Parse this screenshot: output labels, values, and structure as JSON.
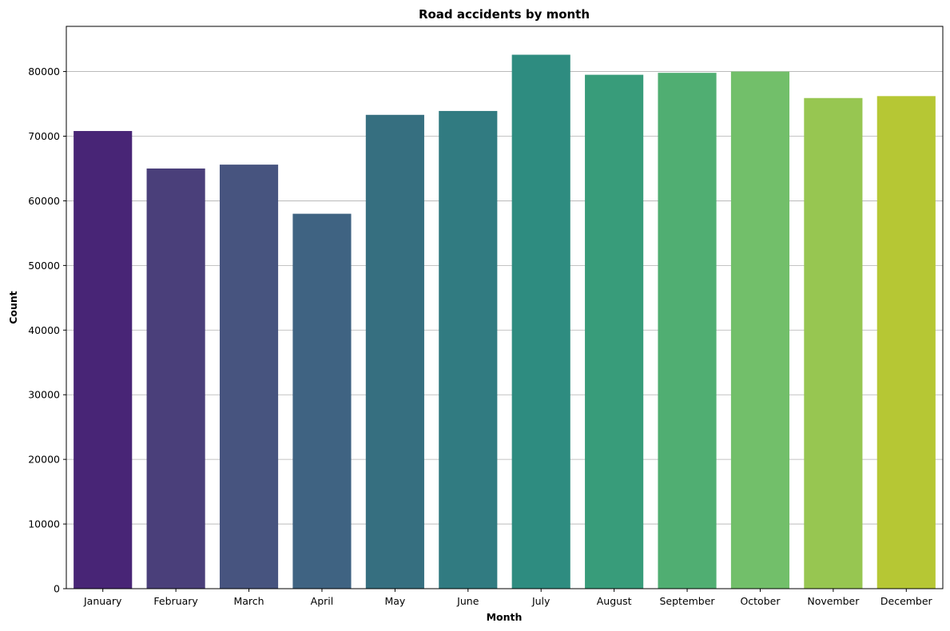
{
  "chart_data": {
    "type": "bar",
    "title": "Road accidents by month",
    "xlabel": "Month",
    "ylabel": "Count",
    "categories": [
      "January",
      "February",
      "March",
      "April",
      "May",
      "June",
      "July",
      "August",
      "September",
      "October",
      "November",
      "December"
    ],
    "values": [
      70800,
      65000,
      65600,
      58000,
      73300,
      73900,
      82600,
      79500,
      79800,
      80000,
      75900,
      76200
    ],
    "colors": [
      "#482576",
      "#4a3f7a",
      "#47547f",
      "#3f6382",
      "#366f80",
      "#317b81",
      "#2e8c80",
      "#389c7a",
      "#50ae72",
      "#72bf6a",
      "#97c651",
      "#b6c734"
    ],
    "ylim": [
      0,
      86990
    ],
    "yticks": [
      0,
      10000,
      20000,
      30000,
      40000,
      50000,
      60000,
      70000,
      80000
    ],
    "ytick_labels": [
      "0",
      "10000",
      "20000",
      "30000",
      "40000",
      "50000",
      "60000",
      "70000",
      "80000"
    ],
    "grid": "y",
    "legend": "none"
  }
}
